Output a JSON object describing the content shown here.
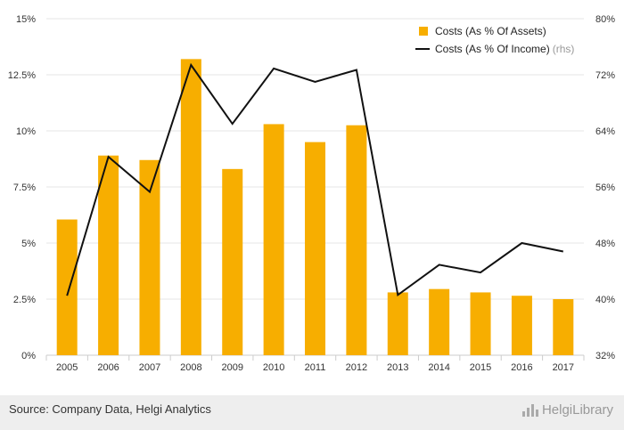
{
  "chart_data": {
    "type": "bar+line",
    "categories": [
      "2005",
      "2006",
      "2007",
      "2008",
      "2009",
      "2010",
      "2011",
      "2012",
      "2013",
      "2014",
      "2015",
      "2016",
      "2017"
    ],
    "series": [
      {
        "name": "Costs (As % Of Assets)",
        "type": "bar",
        "axis": "left",
        "color": "#F7AE00",
        "values": [
          6.05,
          8.9,
          8.7,
          13.2,
          8.3,
          10.3,
          9.5,
          10.25,
          2.8,
          2.95,
          2.8,
          2.65,
          2.5
        ]
      },
      {
        "name": "Costs (As % Of Income)",
        "name_suffix": "(rhs)",
        "type": "line",
        "axis": "right",
        "color": "#111111",
        "values": [
          40.5,
          60.3,
          55.3,
          73.4,
          65.0,
          72.9,
          71.0,
          72.7,
          40.6,
          44.9,
          43.8,
          48.0,
          46.8
        ]
      }
    ],
    "y_left": {
      "min": 0,
      "max": 15,
      "ticks": [
        0,
        2.5,
        5,
        7.5,
        10,
        12.5,
        15
      ],
      "tick_labels": [
        "0%",
        "2.5%",
        "5%",
        "7.5%",
        "10%",
        "12.5%",
        "15%"
      ]
    },
    "y_right": {
      "min": 32,
      "max": 80,
      "ticks": [
        32,
        40,
        48,
        56,
        64,
        72,
        80
      ],
      "tick_labels": [
        "32%",
        "40%",
        "48%",
        "56%",
        "64%",
        "72%",
        "80%"
      ]
    },
    "grid": true,
    "legend_position": "top-right"
  },
  "footer": {
    "source": "Source: Company Data, Helgi Analytics",
    "brand": "HelgiLibrary"
  }
}
